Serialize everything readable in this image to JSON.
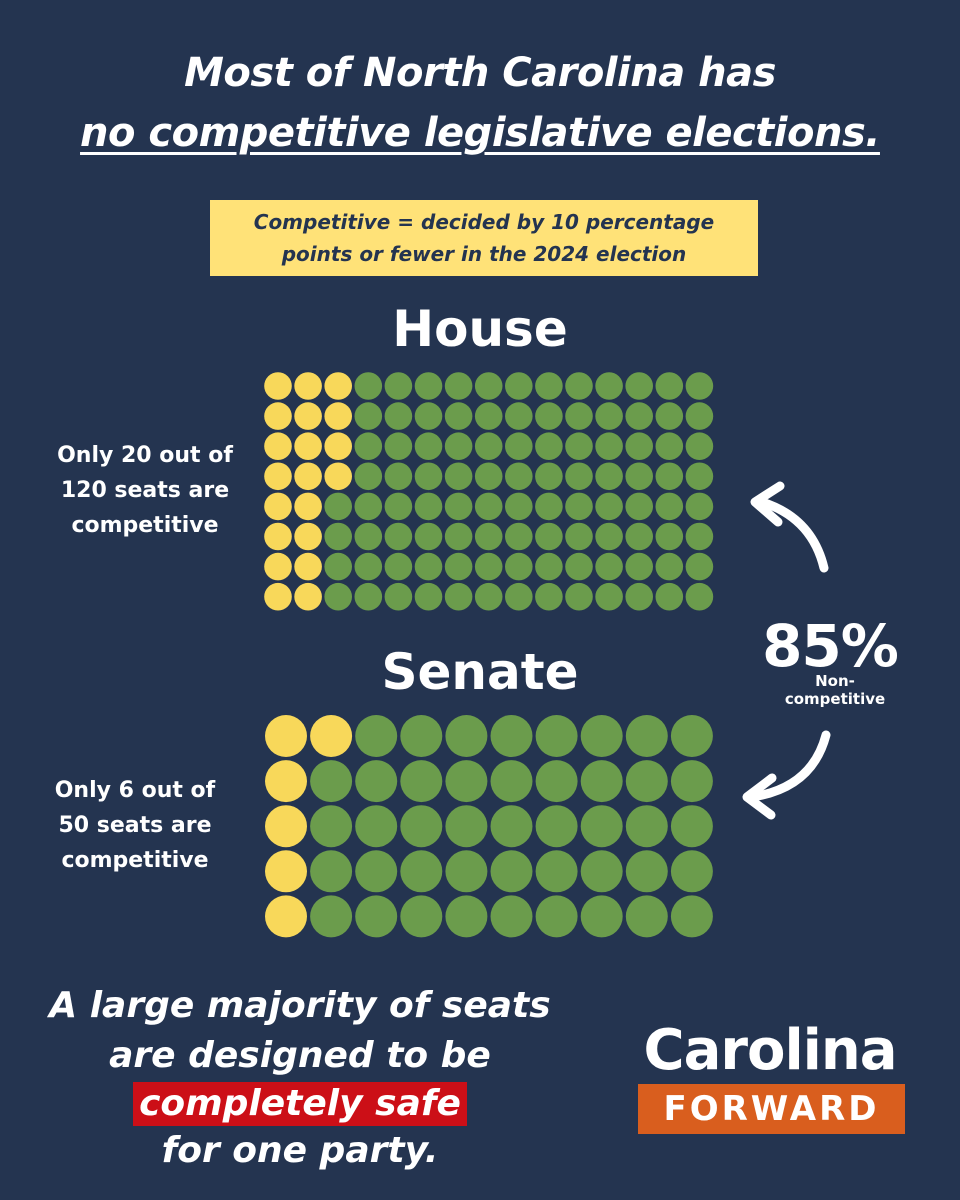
{
  "header": {
    "title_line1": "Most of North Carolina has",
    "title_line2": "no competitive legislative elections."
  },
  "definition": {
    "line1": "Competitive =  decided by 10 percentage",
    "line2": "points or fewer in the 2024 election"
  },
  "chart_data": [
    {
      "type": "waffle",
      "title": "House",
      "total": 120,
      "competitive": 20,
      "rows": 8,
      "columns": 15,
      "label_lines": [
        "Only 20 out of",
        "120 seats are",
        "competitive"
      ]
    },
    {
      "type": "waffle",
      "title": "Senate",
      "total": 50,
      "competitive": 6,
      "rows": 5,
      "columns": 10,
      "label_lines": [
        "Only 6 out of",
        "50 seats are",
        "competitive"
      ]
    }
  ],
  "colors": {
    "background": "#243450",
    "competitive": "#f8d85a",
    "non_competitive": "#6b9c4c",
    "highlight": "#cc0f17",
    "logo_bar": "#d95e1e"
  },
  "callout": {
    "percent": "85%",
    "sub_line1": "Non-",
    "sub_line2": "competitive"
  },
  "footer": {
    "line1": "A large majority of seats",
    "line2": "are designed to be",
    "line3": "completely safe",
    "line4": "for one party."
  },
  "logo": {
    "top": "Carolina",
    "bottom": "FORWARD"
  }
}
